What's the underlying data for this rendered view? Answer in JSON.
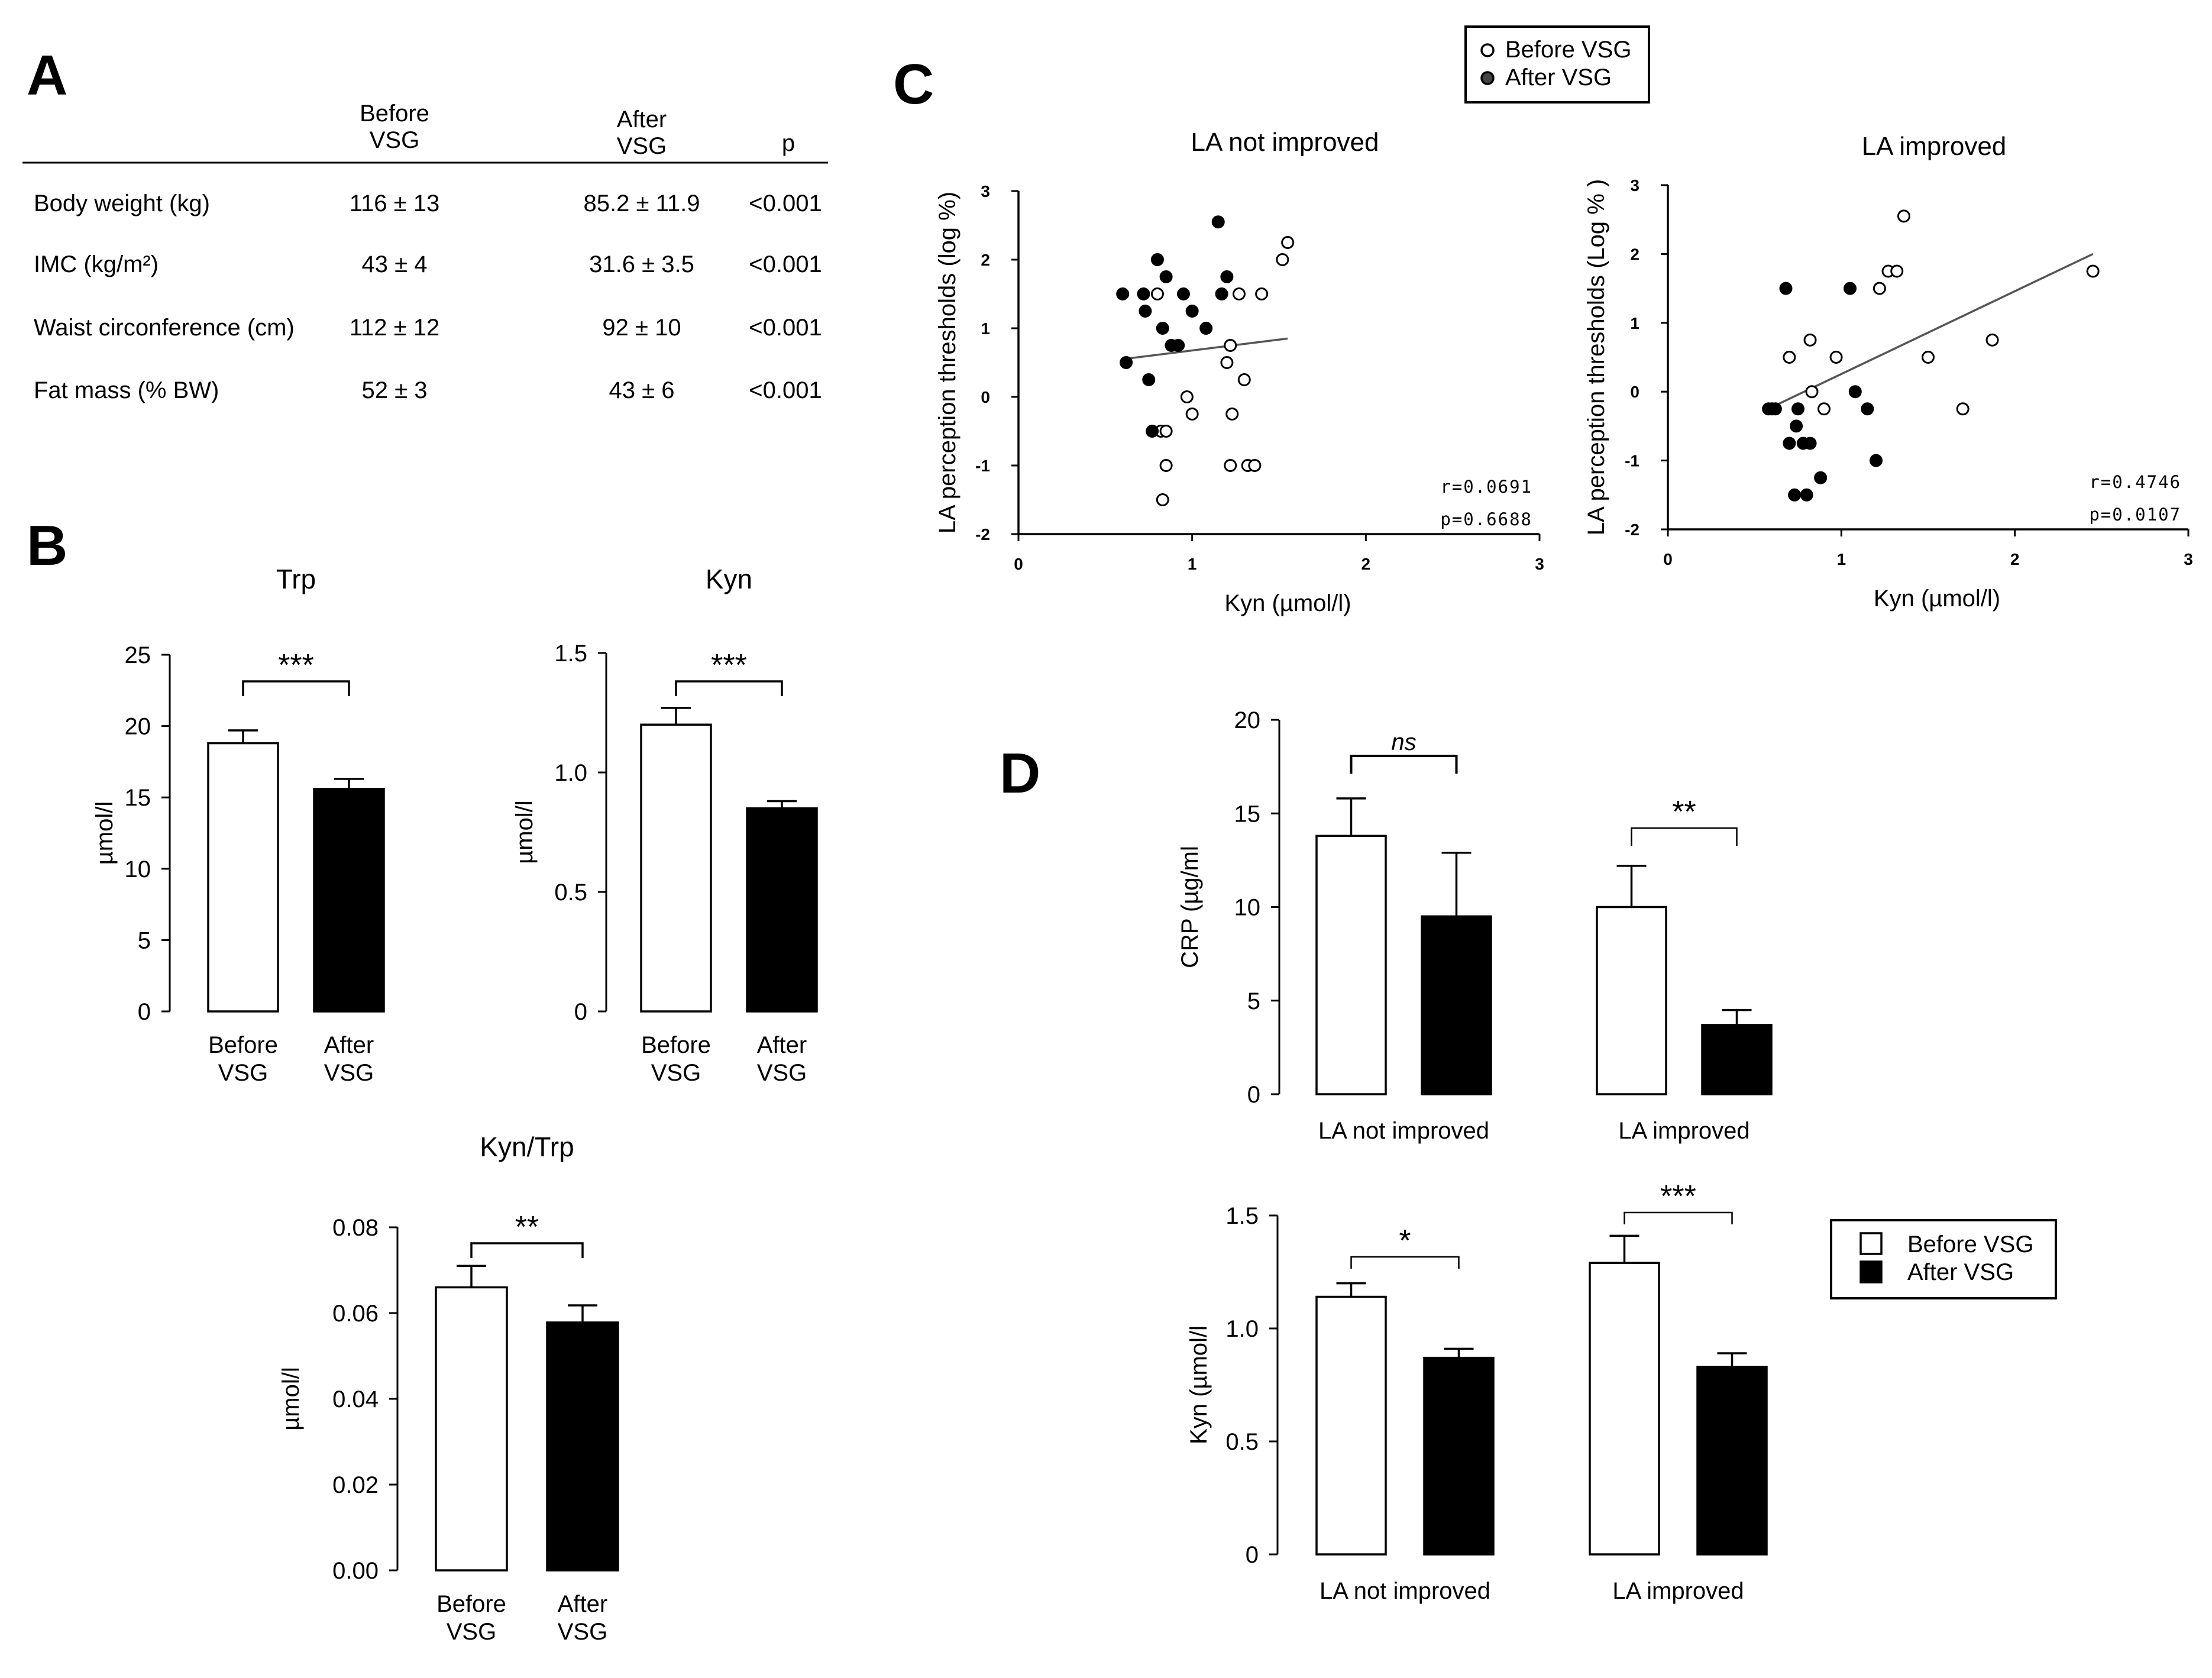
{
  "panel_labels": {
    "a": "A",
    "b": "B",
    "c": "C",
    "d": "D"
  },
  "table": {
    "col_before": [
      "Before",
      "VSG"
    ],
    "col_after": [
      "After",
      "VSG"
    ],
    "col_p": "p",
    "rows": [
      {
        "label": "Body weight (kg)",
        "before": "116 ± 13",
        "after": "85.2 ± 11.9",
        "p": "<0.001"
      },
      {
        "label": "IMC (kg/m²)",
        "before": "43 ± 4",
        "after": "31.6 ± 3.5",
        "p": "<0.001"
      },
      {
        "label": "Waist circonference (cm)",
        "before": "112 ± 12",
        "after": "92 ± 10",
        "p": "<0.001"
      },
      {
        "label": "Fat mass (% BW)",
        "before": "52 ± 3",
        "after": "43 ± 6",
        "p": "<0.001"
      }
    ]
  },
  "legend_c": [
    "Before VSG",
    "After VSG"
  ],
  "legend_d": [
    "Before VSG",
    "After VSG"
  ],
  "colors": {
    "before_fill": "#ffffff",
    "after_fill": "#000000",
    "regression_line": "#555555",
    "axis": "#000000"
  },
  "chart_data": [
    {
      "id": "trp",
      "type": "bar",
      "title": "Trp",
      "ylabel": "µmol/l",
      "categories": [
        [
          "Before",
          "VSG"
        ],
        [
          "After",
          "VSG"
        ]
      ],
      "series": [
        {
          "values": [
            18.8,
            15.6
          ],
          "errors": [
            0.9,
            0.7
          ]
        }
      ],
      "ylim": [
        0,
        25
      ],
      "yticks": [
        "0",
        "5",
        "10",
        "15",
        "20",
        "25"
      ],
      "significance": [
        {
          "pair": [
            0,
            1
          ],
          "label": "***"
        }
      ]
    },
    {
      "id": "kyn",
      "type": "bar",
      "title": "Kyn",
      "ylabel": "µmol/l",
      "categories": [
        [
          "Before",
          "VSG"
        ],
        [
          "After",
          "VSG"
        ]
      ],
      "series": [
        {
          "values": [
            1.2,
            0.85
          ],
          "errors": [
            0.07,
            0.03
          ]
        }
      ],
      "ylim": [
        0,
        1.5
      ],
      "yticks": [
        "0",
        "0.5",
        "1.0",
        "1.5"
      ],
      "significance": [
        {
          "pair": [
            0,
            1
          ],
          "label": "***"
        }
      ]
    },
    {
      "id": "ratio",
      "type": "bar",
      "title": "Kyn/Trp",
      "ylabel": "µmol/l",
      "categories": [
        [
          "Before",
          "VSG"
        ],
        [
          "After",
          "VSG"
        ]
      ],
      "series": [
        {
          "values": [
            0.066,
            0.0578
          ],
          "errors": [
            0.005,
            0.004
          ]
        }
      ],
      "ylim": [
        0,
        0.08
      ],
      "yticks": [
        "0.00",
        "0.02",
        "0.04",
        "0.06",
        "0.08"
      ],
      "significance": [
        {
          "pair": [
            0,
            1
          ],
          "label": "**"
        }
      ]
    },
    {
      "id": "scat1",
      "type": "scatter",
      "title": "LA not improved",
      "xlabel": "Kyn (µmol/l)",
      "ylabel": "LA perception thresholds (log %)",
      "xlim": [
        0,
        3
      ],
      "ylim": [
        -2,
        3
      ],
      "xticks": [
        "0",
        "1",
        "2",
        "3"
      ],
      "yticks": [
        "-2",
        "-1",
        "0",
        "1",
        "2",
        "3"
      ],
      "stats": [
        "r=0.0691",
        "p=0.6688"
      ],
      "series": [
        {
          "name": "Before VSG",
          "points": [
            [
              0.8,
              1.5
            ],
            [
              0.82,
              -0.5
            ],
            [
              0.85,
              -0.5
            ],
            [
              0.85,
              -1.0
            ],
            [
              0.83,
              -1.5
            ],
            [
              0.97,
              0.0
            ],
            [
              1.0,
              -0.25
            ],
            [
              1.2,
              0.5
            ],
            [
              1.22,
              0.75
            ],
            [
              1.23,
              -0.25
            ],
            [
              1.22,
              -1.0
            ],
            [
              1.27,
              1.5
            ],
            [
              1.3,
              0.25
            ],
            [
              1.32,
              -1.0
            ],
            [
              1.36,
              -1.0
            ],
            [
              1.4,
              1.5
            ],
            [
              1.52,
              2.0
            ],
            [
              1.55,
              2.25
            ]
          ]
        },
        {
          "name": "After VSG",
          "points": [
            [
              0.6,
              1.5
            ],
            [
              0.62,
              0.5
            ],
            [
              0.72,
              1.5
            ],
            [
              0.73,
              1.25
            ],
            [
              0.75,
              0.25
            ],
            [
              0.77,
              -0.5
            ],
            [
              0.8,
              2.0
            ],
            [
              0.83,
              1.0
            ],
            [
              0.85,
              1.75
            ],
            [
              0.88,
              0.75
            ],
            [
              0.92,
              0.75
            ],
            [
              0.95,
              1.5
            ],
            [
              1.0,
              1.25
            ],
            [
              1.08,
              1.0
            ],
            [
              1.15,
              2.55
            ],
            [
              1.17,
              1.5
            ],
            [
              1.2,
              1.75
            ]
          ]
        }
      ],
      "fit": [
        [
          0.6,
          0.55
        ],
        [
          1.55,
          0.85
        ]
      ]
    },
    {
      "id": "scat2",
      "type": "scatter",
      "title": "LA improved",
      "xlabel": "Kyn (µmol/l)",
      "ylabel": "LA perception thresholds (Log % )",
      "xlim": [
        0,
        3
      ],
      "ylim": [
        -2,
        3
      ],
      "xticks": [
        "0",
        "1",
        "2",
        "3"
      ],
      "yticks": [
        "-2",
        "-1",
        "0",
        "1",
        "2",
        "3"
      ],
      "stats": [
        "r=0.4746",
        "p=0.0107"
      ],
      "series": [
        {
          "name": "Before VSG",
          "points": [
            [
              0.7,
              0.5
            ],
            [
              0.82,
              0.75
            ],
            [
              0.83,
              0.0
            ],
            [
              0.9,
              -0.25
            ],
            [
              0.97,
              0.5
            ],
            [
              1.22,
              1.5
            ],
            [
              1.27,
              1.75
            ],
            [
              1.32,
              1.75
            ],
            [
              1.36,
              2.55
            ],
            [
              1.5,
              0.5
            ],
            [
              1.7,
              -0.25
            ],
            [
              1.87,
              0.75
            ],
            [
              2.45,
              1.75
            ]
          ]
        },
        {
          "name": "After VSG",
          "points": [
            [
              0.58,
              -0.25
            ],
            [
              0.6,
              -0.25
            ],
            [
              0.62,
              -0.25
            ],
            [
              0.68,
              1.5
            ],
            [
              0.7,
              -0.75
            ],
            [
              0.73,
              -1.5
            ],
            [
              0.74,
              -0.5
            ],
            [
              0.75,
              -0.25
            ],
            [
              0.78,
              -0.75
            ],
            [
              0.8,
              -1.5
            ],
            [
              0.82,
              -0.75
            ],
            [
              0.88,
              -1.25
            ],
            [
              1.05,
              1.5
            ],
            [
              1.08,
              0.0
            ],
            [
              1.15,
              -0.25
            ],
            [
              1.2,
              -1.0
            ]
          ]
        }
      ],
      "fit": [
        [
          0.62,
          -0.2
        ],
        [
          2.45,
          2.0
        ]
      ]
    },
    {
      "id": "crp",
      "type": "bar",
      "title": "",
      "ylabel": "CRP (µg/ml",
      "categories": [
        "LA not improved",
        "LA improved"
      ],
      "series": [
        {
          "name": "Before VSG",
          "values": [
            13.8,
            10.0
          ],
          "errors": [
            2.0,
            2.2
          ]
        },
        {
          "name": "After VSG",
          "values": [
            9.5,
            3.7
          ],
          "errors": [
            3.4,
            0.8
          ]
        }
      ],
      "ylim": [
        0,
        20
      ],
      "yticks": [
        "0",
        "5",
        "10",
        "15",
        "20"
      ],
      "significance": [
        {
          "group": 0,
          "label": "ns",
          "italic": true
        },
        {
          "group": 1,
          "label": "**"
        }
      ]
    },
    {
      "id": "kyn2",
      "type": "bar",
      "title": "",
      "ylabel": "Kyn (µmol/l",
      "categories": [
        "LA not improved",
        "LA improved"
      ],
      "series": [
        {
          "name": "Before VSG",
          "values": [
            1.14,
            1.29
          ],
          "errors": [
            0.06,
            0.12
          ]
        },
        {
          "name": "After VSG",
          "values": [
            0.87,
            0.83
          ],
          "errors": [
            0.04,
            0.06
          ]
        }
      ],
      "ylim": [
        0,
        1.5
      ],
      "yticks": [
        "0",
        "0.5",
        "1.0",
        "1.5"
      ],
      "significance": [
        {
          "group": 0,
          "label": "*"
        },
        {
          "group": 1,
          "label": "***"
        }
      ]
    }
  ]
}
